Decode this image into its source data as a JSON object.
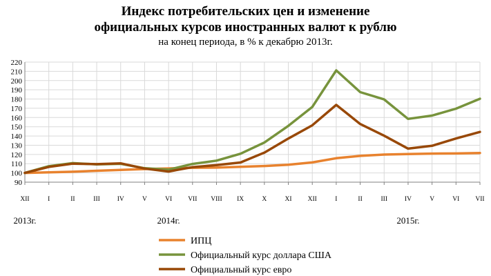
{
  "chart_data": {
    "type": "line",
    "title_line1": "Индекс потребительских цен и изменение",
    "title_line2": "официальных курсов иностранных валют к рублю",
    "subtitle": "на конец периода, в % к декабрю 2013г.",
    "categories": [
      "XII",
      "I",
      "II",
      "III",
      "IV",
      "V",
      "VI",
      "VII",
      "VIII",
      "IX",
      "X",
      "XI",
      "XII",
      "I",
      "II",
      "III",
      "IV",
      "V",
      "VI",
      "VII"
    ],
    "year_labels": [
      {
        "label": "2013г.",
        "category_index": 0
      },
      {
        "label": "2014г.",
        "category_index": 6
      },
      {
        "label": "2015г.",
        "category_index": 16
      }
    ],
    "ylim": [
      90,
      220
    ],
    "yticks": [
      90,
      100,
      110,
      120,
      130,
      140,
      150,
      160,
      170,
      180,
      190,
      200,
      210,
      220
    ],
    "grid": true,
    "legend_position": "bottom",
    "series": [
      {
        "name": "ИПЦ",
        "color": "#e8822e",
        "values": [
          100,
          100.6,
          101.3,
          102.3,
          103.3,
          104.2,
          104.9,
          105.6,
          105.8,
          106.6,
          107.5,
          108.9,
          111.4,
          115.9,
          118.5,
          119.9,
          120.4,
          120.9,
          121.1,
          121.6
        ]
      },
      {
        "name": "Официальный курс доллара США",
        "color": "#77933c",
        "values": [
          100,
          107.3,
          110.6,
          109.3,
          109.9,
          105.1,
          103.5,
          109.7,
          113.3,
          120.8,
          132.9,
          151,
          171.4,
          211,
          187.5,
          179.6,
          158.5,
          162.1,
          169.6,
          180.3
        ]
      },
      {
        "name": "Официальный курс евро",
        "color": "#984807",
        "values": [
          100,
          106.5,
          110,
          109.5,
          110.4,
          104.7,
          101.5,
          106.3,
          108.5,
          111.3,
          122,
          137.2,
          151.6,
          173.7,
          153,
          140.3,
          126.3,
          129.4,
          137.3,
          144.4
        ]
      }
    ]
  }
}
